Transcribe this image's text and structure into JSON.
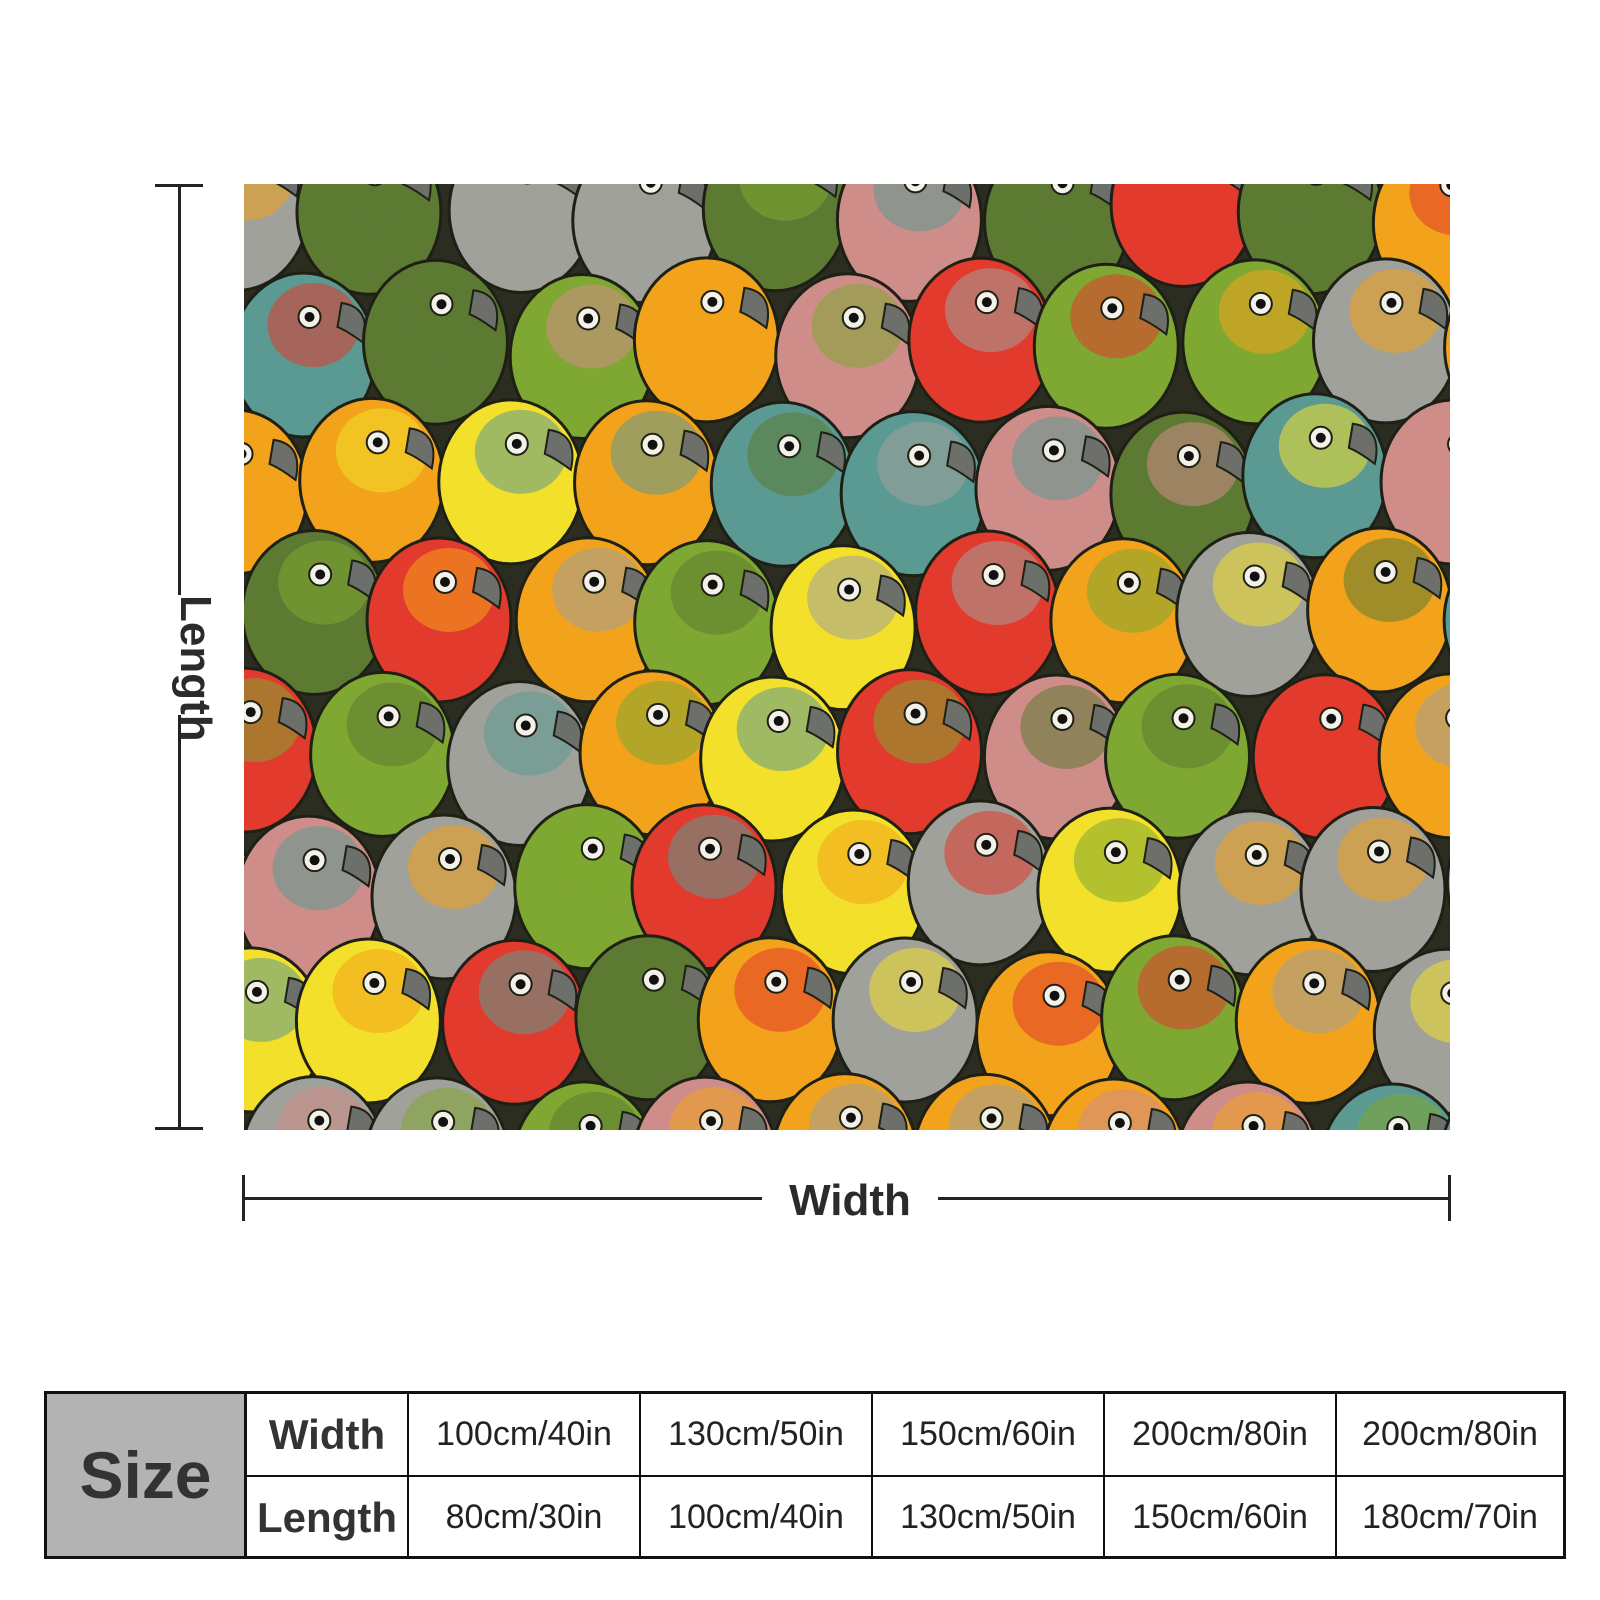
{
  "product_image": {
    "subject": "colorful parrot pattern throw blanket",
    "palette": [
      "#f2a31b",
      "#7fa832",
      "#e23a2c",
      "#a0a19a",
      "#f3e02a",
      "#5d7a33",
      "#cf8d89",
      "#5b9a92"
    ]
  },
  "dimensions": {
    "length_label": "Length",
    "width_label": "Width"
  },
  "size_table": {
    "header": "Size",
    "rows": [
      {
        "label": "Width",
        "values": [
          "100cm/40in",
          "130cm/50in",
          "150cm/60in",
          "200cm/80in",
          "200cm/80in"
        ]
      },
      {
        "label": "Length",
        "values": [
          "80cm/30in",
          "100cm/40in",
          "130cm/50in",
          "150cm/60in",
          "180cm/70in"
        ]
      }
    ]
  }
}
